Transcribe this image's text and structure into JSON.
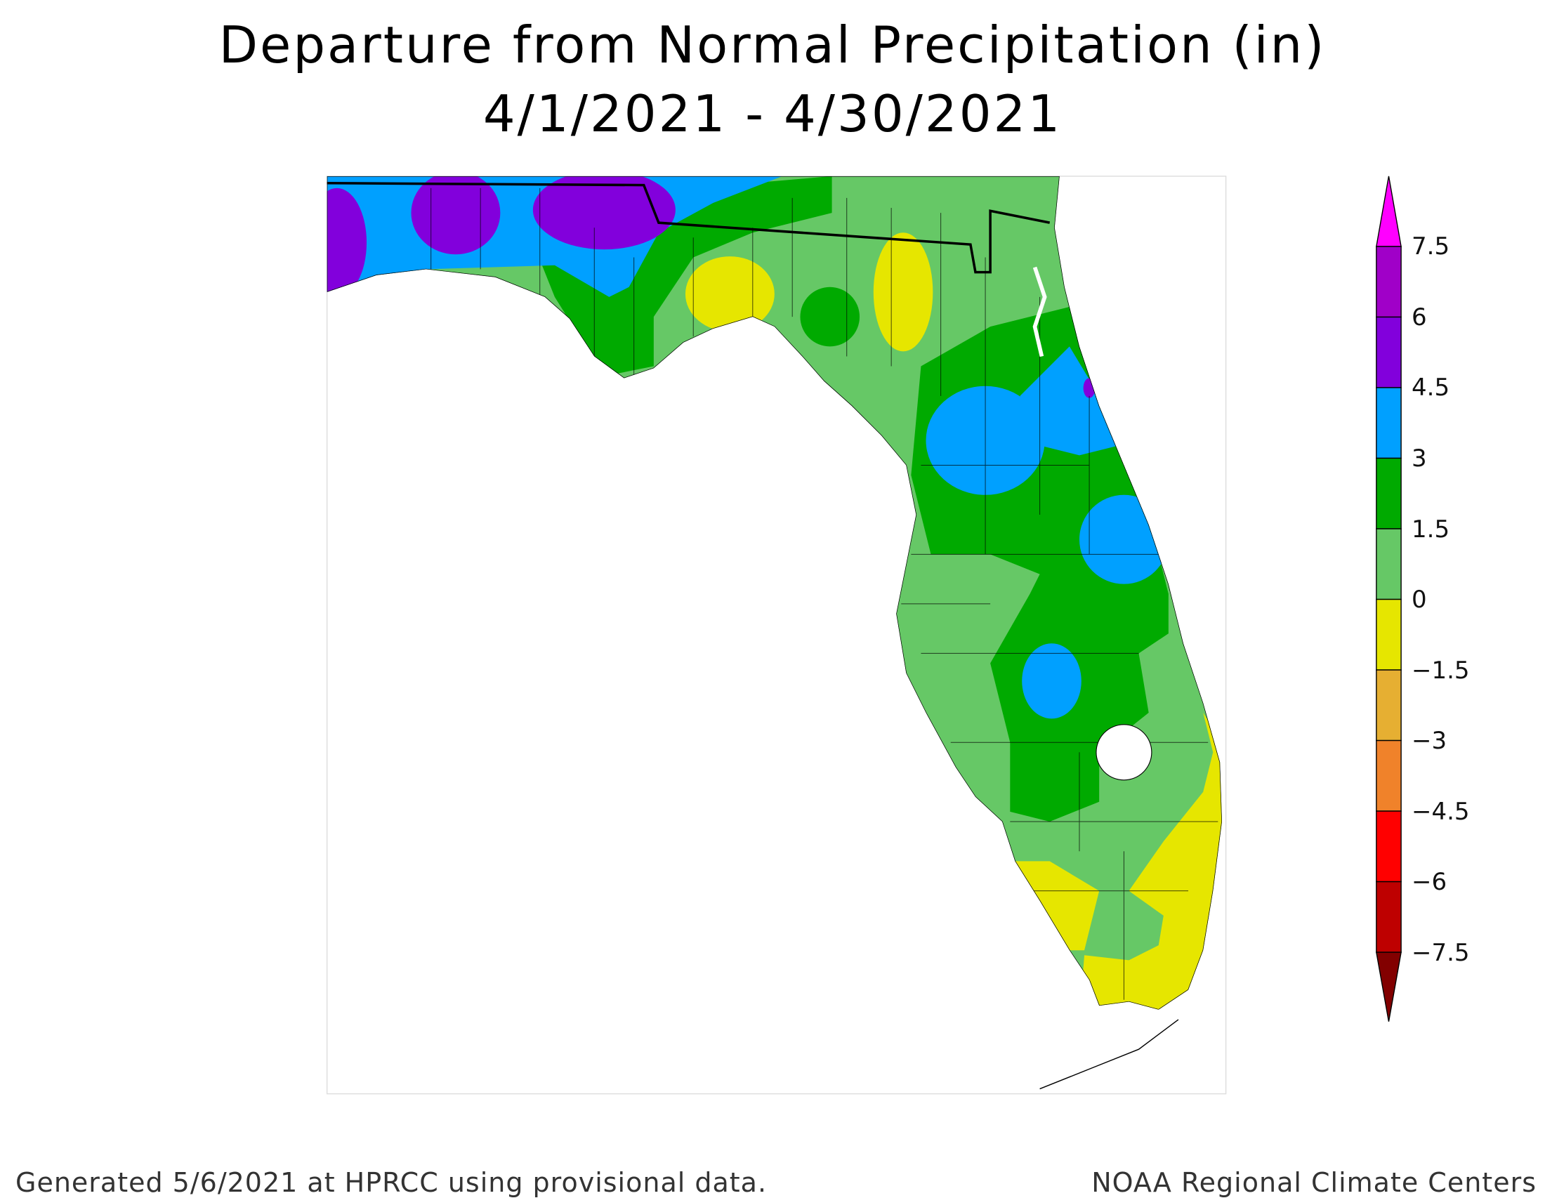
{
  "title": {
    "line1": "Departure from Normal Precipitation (in)",
    "line2": "4/1/2021 - 4/30/2021"
  },
  "legend": {
    "labels": [
      "7.5",
      "6",
      "4.5",
      "3",
      "1.5",
      "0",
      "−1.5",
      "−3",
      "−4.5",
      "−6",
      "−7.5"
    ],
    "colors": [
      "#ff00ff",
      "#a000c8",
      "#8200dc",
      "#00a0ff",
      "#00aa00",
      "#66c866",
      "#e6e600",
      "#e6af32",
      "#f0822a",
      "#ff0000",
      "#be0000",
      "#820000"
    ]
  },
  "map": {
    "region": "Florida",
    "colors": {
      "purple": "#8200dc",
      "blue": "#00a0ff",
      "dark_green": "#00aa00",
      "light_green": "#66c866",
      "yellow": "#e6e600"
    }
  },
  "footer": {
    "left": "Generated 5/6/2021 at HPRCC using provisional data.",
    "right": "NOAA Regional Climate Centers"
  }
}
